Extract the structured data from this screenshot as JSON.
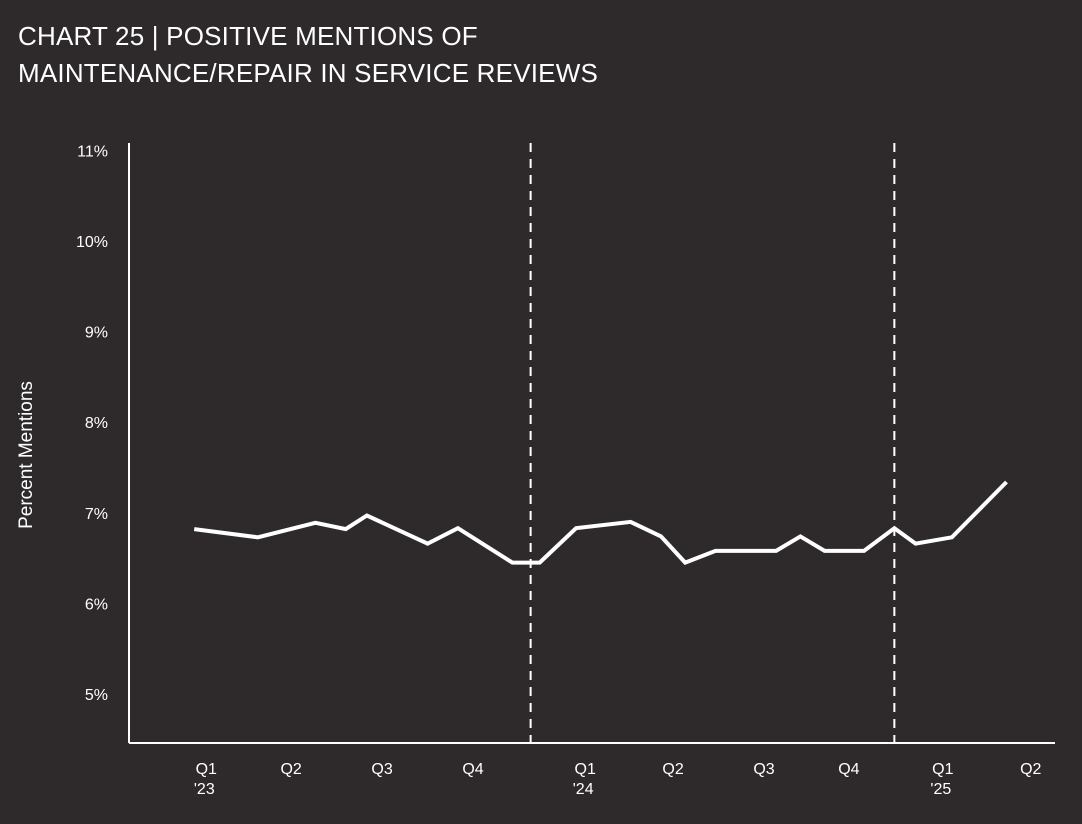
{
  "chart_data": {
    "type": "line",
    "title_lines": [
      "CHART 25 | POSITIVE MENTIONS OF",
      "MAINTENANCE/REPAIR IN SERVICE REVIEWS"
    ],
    "ylabel": "Percent Mentions",
    "xlabel": "",
    "x_units": "months since Jan 2023",
    "xlim": [
      -1.25,
      29.3
    ],
    "ylim": [
      4.46,
      11.08
    ],
    "yticks": [
      {
        "value": 5,
        "label": "5%"
      },
      {
        "value": 6,
        "label": "6%"
      },
      {
        "value": 7,
        "label": "7%"
      },
      {
        "value": 8,
        "label": "8%"
      },
      {
        "value": 9,
        "label": "9%"
      },
      {
        "value": 10,
        "label": "10%"
      },
      {
        "value": 11,
        "label": "11%"
      }
    ],
    "xticks": [
      {
        "value": 1.3,
        "label": "Q1",
        "sub": "'23"
      },
      {
        "value": 4.1,
        "label": "Q2",
        "sub": ""
      },
      {
        "value": 7.1,
        "label": "Q3",
        "sub": ""
      },
      {
        "value": 10.1,
        "label": "Q4",
        "sub": ""
      },
      {
        "value": 13.8,
        "label": "Q1",
        "sub": "'24"
      },
      {
        "value": 16.7,
        "label": "Q2",
        "sub": ""
      },
      {
        "value": 19.7,
        "label": "Q3",
        "sub": ""
      },
      {
        "value": 22.5,
        "label": "Q4",
        "sub": ""
      },
      {
        "value": 25.6,
        "label": "Q1",
        "sub": "'25"
      },
      {
        "value": 28.5,
        "label": "Q2",
        "sub": ""
      }
    ],
    "year_dividers": [
      12,
      24
    ],
    "grid": false,
    "series": [
      {
        "name": "Positive mentions",
        "color": "#ffffff",
        "x": [
          0.9,
          3.0,
          4.9,
          5.9,
          6.6,
          8.6,
          9.6,
          11.4,
          12.3,
          13.5,
          15.3,
          16.3,
          17.1,
          18.1,
          20.1,
          20.9,
          21.7,
          23.0,
          24.0,
          24.7,
          25.9,
          27.7
        ],
        "y": [
          6.82,
          6.73,
          6.89,
          6.82,
          6.97,
          6.66,
          6.83,
          6.45,
          6.45,
          6.83,
          6.9,
          6.74,
          6.45,
          6.58,
          6.58,
          6.74,
          6.58,
          6.58,
          6.83,
          6.66,
          6.73,
          7.34
        ]
      }
    ]
  }
}
